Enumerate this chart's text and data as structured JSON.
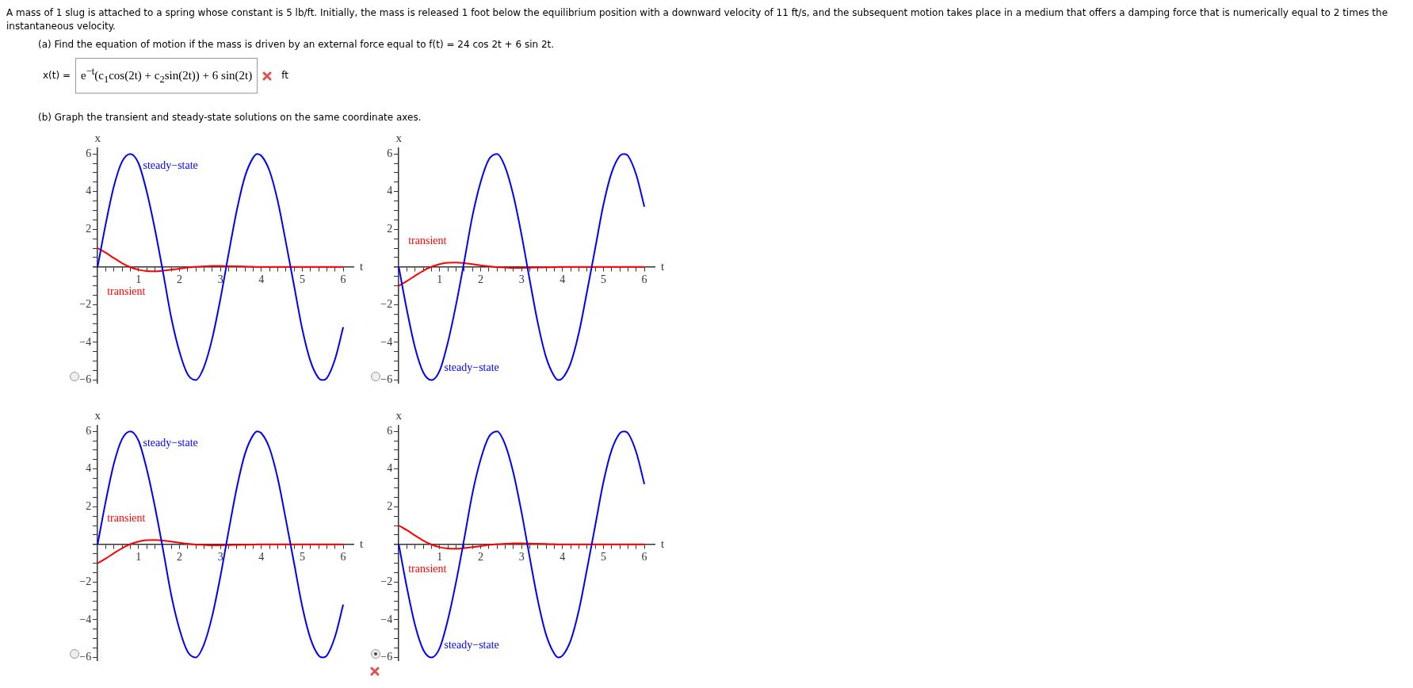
{
  "chart_data": [
    {
      "type": "other",
      "title": "A mass of 1 slug is attached to a spring whose constant is 5 lb/ft. Initially, the mass is released 1 foot below the equilibrium position with a downward velocity of 11 ft/s, and the subsequent motion takes place in a medium that offers a damping force that is numerically equal to 2 times the instantaneous velocity.",
      "annotations": [
        "(a) Find the equation of motion if the mass is driven by an external force equal to f(t) = 24 cos 2t + 6 sin 2t.",
        "x(t) =",
        "e$^{−t}$(c$_{1}$cos(2t) + c$_{2}$sin(2t)) + 6 sin(2t)",
        "ft",
        "(b) Graph the transient and steady-state solutions on the same coordinate axes."
      ]
    },
    {
      "type": "line",
      "xlabel": "t",
      "ylabel": "x",
      "xlim": [
        -0.1,
        6.25
      ],
      "ylim": [
        -6.15,
        6.3
      ],
      "grid": false,
      "legend": false,
      "marker": "none",
      "line_style": "solid",
      "xticks": [
        {
          "value": 0.2,
          "label": null
        },
        {
          "value": 0.4,
          "label": null
        },
        {
          "value": 0.6,
          "label": null
        },
        {
          "value": 0.8,
          "label": null
        },
        1,
        {
          "value": 1.2,
          "label": null
        },
        {
          "value": 1.4,
          "label": null
        },
        {
          "value": 1.6,
          "label": null
        },
        {
          "value": 1.8,
          "label": null
        },
        2,
        {
          "value": 2.2,
          "label": null
        },
        {
          "value": 2.4,
          "label": null
        },
        {
          "value": 2.6,
          "label": null
        },
        {
          "value": 2.8,
          "label": null
        },
        3,
        {
          "value": 3.2,
          "label": null
        },
        {
          "value": 3.4,
          "label": null
        },
        {
          "value": 3.6,
          "label": null
        },
        {
          "value": 3.8,
          "label": null
        },
        4,
        {
          "value": 4.2,
          "label": null
        },
        {
          "value": 4.4,
          "label": null
        },
        {
          "value": 4.6,
          "label": null
        },
        {
          "value": 4.8,
          "label": null
        },
        5,
        {
          "value": 5.2,
          "label": null
        },
        {
          "value": 5.4,
          "label": null
        },
        {
          "value": 5.6,
          "label": null
        },
        {
          "value": 5.8,
          "label": null
        },
        6
      ],
      "yticks": [
        -6,
        {
          "value": -5.5,
          "label": null
        },
        {
          "value": -5,
          "label": null
        },
        {
          "value": -4.5,
          "label": null
        },
        -4,
        {
          "value": -3.5,
          "label": null
        },
        {
          "value": -3,
          "label": null
        },
        {
          "value": -2.5,
          "label": null
        },
        -2,
        {
          "value": -1.5,
          "label": null
        },
        {
          "value": -1,
          "label": null
        },
        {
          "value": -0.5,
          "label": null
        },
        {
          "value": 0.5,
          "label": null
        },
        {
          "value": 1,
          "label": null
        },
        {
          "value": 1.5,
          "label": null
        },
        2,
        {
          "value": 2.5,
          "label": null
        },
        {
          "value": 3,
          "label": null
        },
        {
          "value": 3.5,
          "label": null
        },
        4,
        {
          "value": 4.5,
          "label": null
        },
        {
          "value": 5,
          "label": null
        },
        {
          "value": 5.5,
          "label": null
        },
        6
      ],
      "x": [
        0,
        0.2,
        0.4,
        0.6,
        0.8,
        1.0,
        1.2,
        1.4,
        1.6,
        1.8,
        2.0,
        2.2,
        2.4,
        2.6,
        2.8,
        3.0,
        3.2,
        3.4,
        3.6,
        3.8,
        3.9,
        4.0,
        4.2,
        4.4,
        4.6,
        4.8,
        5.0,
        5.2,
        5.4,
        5.5,
        5.6,
        5.8,
        6.0
      ],
      "series": [
        {
          "name": "steady−state",
          "color": "#0000ff",
          "values": [
            0,
            2.3,
            4.3,
            5.6,
            6.0,
            5.5,
            4.0,
            2.0,
            -0.3,
            -2.7,
            -4.5,
            -5.7,
            -6.0,
            -5.3,
            -3.8,
            -1.7,
            0.7,
            3.0,
            4.8,
            5.8,
            6.0,
            5.9,
            5.1,
            3.5,
            1.3,
            -1.0,
            -3.3,
            -5.0,
            -5.9,
            -6.0,
            -5.9,
            -4.9,
            -3.2
          ]
        },
        {
          "name": "transient",
          "color": "#ff0000",
          "values": [
            1,
            0.75,
            0.47,
            0.2,
            -0.01,
            -0.15,
            -0.22,
            -0.23,
            -0.2,
            -0.15,
            -0.09,
            -0.03,
            0.01,
            0.03,
            0.05,
            0.05,
            0.04,
            0.03,
            0.02,
            0.01,
            0,
            0,
            0,
            0,
            0,
            0,
            0,
            0,
            0,
            0,
            0,
            0,
            0
          ]
        }
      ]
    },
    {
      "type": "line",
      "xlabel": "t",
      "ylabel": "x",
      "xlim": [
        -0.1,
        6.25
      ],
      "ylim": [
        -6.15,
        6.3
      ],
      "grid": false,
      "legend": false,
      "marker": "none",
      "line_style": "solid",
      "xticks": [
        {
          "value": 0.2,
          "label": null
        },
        {
          "value": 0.4,
          "label": null
        },
        {
          "value": 0.6,
          "label": null
        },
        {
          "value": 0.8,
          "label": null
        },
        1,
        {
          "value": 1.2,
          "label": null
        },
        {
          "value": 1.4,
          "label": null
        },
        {
          "value": 1.6,
          "label": null
        },
        {
          "value": 1.8,
          "label": null
        },
        2,
        {
          "value": 2.2,
          "label": null
        },
        {
          "value": 2.4,
          "label": null
        },
        {
          "value": 2.6,
          "label": null
        },
        {
          "value": 2.8,
          "label": null
        },
        3,
        {
          "value": 3.2,
          "label": null
        },
        {
          "value": 3.4,
          "label": null
        },
        {
          "value": 3.6,
          "label": null
        },
        {
          "value": 3.8,
          "label": null
        },
        4,
        {
          "value": 4.2,
          "label": null
        },
        {
          "value": 4.4,
          "label": null
        },
        {
          "value": 4.6,
          "label": null
        },
        {
          "value": 4.8,
          "label": null
        },
        5,
        {
          "value": 5.2,
          "label": null
        },
        {
          "value": 5.4,
          "label": null
        },
        {
          "value": 5.6,
          "label": null
        },
        {
          "value": 5.8,
          "label": null
        },
        6
      ],
      "yticks": [
        -6,
        {
          "value": -5.5,
          "label": null
        },
        {
          "value": -5,
          "label": null
        },
        {
          "value": -4.5,
          "label": null
        },
        -4,
        {
          "value": -3.5,
          "label": null
        },
        {
          "value": -3,
          "label": null
        },
        {
          "value": -2.5,
          "label": null
        },
        -2,
        {
          "value": -1.5,
          "label": null
        },
        {
          "value": -1,
          "label": null
        },
        {
          "value": -0.5,
          "label": null
        },
        {
          "value": 0.5,
          "label": null
        },
        {
          "value": 1,
          "label": null
        },
        {
          "value": 1.5,
          "label": null
        },
        2,
        {
          "value": 2.5,
          "label": null
        },
        {
          "value": 3,
          "label": null
        },
        {
          "value": 3.5,
          "label": null
        },
        4,
        {
          "value": 4.5,
          "label": null
        },
        {
          "value": 5,
          "label": null
        },
        {
          "value": 5.5,
          "label": null
        },
        6
      ],
      "x": [
        0,
        0.2,
        0.4,
        0.6,
        0.8,
        1.0,
        1.2,
        1.4,
        1.6,
        1.8,
        2.0,
        2.2,
        2.4,
        2.6,
        2.8,
        3.0,
        3.2,
        3.4,
        3.6,
        3.8,
        3.9,
        4.0,
        4.2,
        4.4,
        4.6,
        4.8,
        5.0,
        5.2,
        5.4,
        5.5,
        5.6,
        5.8,
        6.0
      ],
      "series": [
        {
          "name": "steady−state",
          "color": "#0000ff",
          "values": [
            0,
            -2.3,
            -4.3,
            -5.6,
            -6.0,
            -5.5,
            -4.0,
            -2.0,
            0.3,
            2.7,
            4.5,
            5.7,
            6.0,
            5.3,
            3.8,
            1.7,
            -0.7,
            -3.0,
            -4.8,
            -5.8,
            -6.0,
            -5.9,
            -5.1,
            -3.5,
            -1.3,
            1.0,
            3.3,
            5.0,
            5.9,
            6.0,
            5.9,
            4.9,
            3.2
          ]
        },
        {
          "name": "transient",
          "color": "#ff0000",
          "values": [
            -1,
            -0.75,
            -0.47,
            -0.2,
            0.01,
            0.15,
            0.22,
            0.23,
            0.2,
            0.15,
            0.09,
            0.03,
            -0.01,
            -0.03,
            -0.05,
            -0.05,
            -0.04,
            -0.03,
            -0.02,
            -0.01,
            0,
            0,
            0,
            0,
            0,
            0,
            0,
            0,
            0,
            0,
            0,
            0,
            0
          ]
        }
      ]
    },
    {
      "type": "line",
      "xlabel": "t",
      "ylabel": "x",
      "xlim": [
        -0.1,
        6.25
      ],
      "ylim": [
        -6.15,
        6.3
      ],
      "grid": false,
      "legend": false,
      "marker": "none",
      "line_style": "solid",
      "xticks": [
        {
          "value": 0.2,
          "label": null
        },
        {
          "value": 0.4,
          "label": null
        },
        {
          "value": 0.6,
          "label": null
        },
        {
          "value": 0.8,
          "label": null
        },
        1,
        {
          "value": 1.2,
          "label": null
        },
        {
          "value": 1.4,
          "label": null
        },
        {
          "value": 1.6,
          "label": null
        },
        {
          "value": 1.8,
          "label": null
        },
        2,
        {
          "value": 2.2,
          "label": null
        },
        {
          "value": 2.4,
          "label": null
        },
        {
          "value": 2.6,
          "label": null
        },
        {
          "value": 2.8,
          "label": null
        },
        3,
        {
          "value": 3.2,
          "label": null
        },
        {
          "value": 3.4,
          "label": null
        },
        {
          "value": 3.6,
          "label": null
        },
        {
          "value": 3.8,
          "label": null
        },
        4,
        {
          "value": 4.2,
          "label": null
        },
        {
          "value": 4.4,
          "label": null
        },
        {
          "value": 4.6,
          "label": null
        },
        {
          "value": 4.8,
          "label": null
        },
        5,
        {
          "value": 5.2,
          "label": null
        },
        {
          "value": 5.4,
          "label": null
        },
        {
          "value": 5.6,
          "label": null
        },
        {
          "value": 5.8,
          "label": null
        },
        6
      ],
      "yticks": [
        -6,
        {
          "value": -5.5,
          "label": null
        },
        {
          "value": -5,
          "label": null
        },
        {
          "value": -4.5,
          "label": null
        },
        -4,
        {
          "value": -3.5,
          "label": null
        },
        {
          "value": -3,
          "label": null
        },
        {
          "value": -2.5,
          "label": null
        },
        -2,
        {
          "value": -1.5,
          "label": null
        },
        {
          "value": -1,
          "label": null
        },
        {
          "value": -0.5,
          "label": null
        },
        {
          "value": 0.5,
          "label": null
        },
        {
          "value": 1,
          "label": null
        },
        {
          "value": 1.5,
          "label": null
        },
        2,
        {
          "value": 2.5,
          "label": null
        },
        {
          "value": 3,
          "label": null
        },
        {
          "value": 3.5,
          "label": null
        },
        4,
        {
          "value": 4.5,
          "label": null
        },
        {
          "value": 5,
          "label": null
        },
        {
          "value": 5.5,
          "label": null
        },
        6
      ],
      "x": [
        0,
        0.2,
        0.4,
        0.6,
        0.8,
        1.0,
        1.2,
        1.4,
        1.6,
        1.8,
        2.0,
        2.2,
        2.4,
        2.6,
        2.8,
        3.0,
        3.2,
        3.4,
        3.6,
        3.8,
        3.9,
        4.0,
        4.2,
        4.4,
        4.6,
        4.8,
        5.0,
        5.2,
        5.4,
        5.5,
        5.6,
        5.8,
        6.0
      ],
      "series": [
        {
          "name": "steady−state",
          "color": "#0000ff",
          "values": [
            0,
            2.3,
            4.3,
            5.6,
            6.0,
            5.5,
            4.0,
            2.0,
            -0.3,
            -2.7,
            -4.5,
            -5.7,
            -6.0,
            -5.3,
            -3.8,
            -1.7,
            0.7,
            3.0,
            4.8,
            5.8,
            6.0,
            5.9,
            5.1,
            3.5,
            1.3,
            -1.0,
            -3.3,
            -5.0,
            -5.9,
            -6.0,
            -5.9,
            -4.9,
            -3.2
          ]
        },
        {
          "name": "transient",
          "color": "#ff0000",
          "values": [
            -1,
            -0.75,
            -0.47,
            -0.2,
            0.01,
            0.15,
            0.22,
            0.23,
            0.2,
            0.15,
            0.09,
            0.03,
            -0.01,
            -0.03,
            -0.05,
            -0.05,
            -0.04,
            -0.03,
            -0.02,
            -0.01,
            0,
            0,
            0,
            0,
            0,
            0,
            0,
            0,
            0,
            0,
            0,
            0,
            0
          ]
        }
      ]
    },
    {
      "type": "line",
      "xlabel": "t",
      "ylabel": "x",
      "xlim": [
        -0.1,
        6.25
      ],
      "ylim": [
        -6.15,
        6.3
      ],
      "grid": false,
      "legend": false,
      "marker": "none",
      "line_style": "solid",
      "xticks": [
        {
          "value": 0.2,
          "label": null
        },
        {
          "value": 0.4,
          "label": null
        },
        {
          "value": 0.6,
          "label": null
        },
        {
          "value": 0.8,
          "label": null
        },
        1,
        {
          "value": 1.2,
          "label": null
        },
        {
          "value": 1.4,
          "label": null
        },
        {
          "value": 1.6,
          "label": null
        },
        {
          "value": 1.8,
          "label": null
        },
        2,
        {
          "value": 2.2,
          "label": null
        },
        {
          "value": 2.4,
          "label": null
        },
        {
          "value": 2.6,
          "label": null
        },
        {
          "value": 2.8,
          "label": null
        },
        3,
        {
          "value": 3.2,
          "label": null
        },
        {
          "value": 3.4,
          "label": null
        },
        {
          "value": 3.6,
          "label": null
        },
        {
          "value": 3.8,
          "label": null
        },
        4,
        {
          "value": 4.2,
          "label": null
        },
        {
          "value": 4.4,
          "label": null
        },
        {
          "value": 4.6,
          "label": null
        },
        {
          "value": 4.8,
          "label": null
        },
        5,
        {
          "value": 5.2,
          "label": null
        },
        {
          "value": 5.4,
          "label": null
        },
        {
          "value": 5.6,
          "label": null
        },
        {
          "value": 5.8,
          "label": null
        },
        6
      ],
      "yticks": [
        -6,
        {
          "value": -5.5,
          "label": null
        },
        {
          "value": -5,
          "label": null
        },
        {
          "value": -4.5,
          "label": null
        },
        -4,
        {
          "value": -3.5,
          "label": null
        },
        {
          "value": -3,
          "label": null
        },
        {
          "value": -2.5,
          "label": null
        },
        -2,
        {
          "value": -1.5,
          "label": null
        },
        {
          "value": -1,
          "label": null
        },
        {
          "value": -0.5,
          "label": null
        },
        {
          "value": 0.5,
          "label": null
        },
        {
          "value": 1,
          "label": null
        },
        {
          "value": 1.5,
          "label": null
        },
        2,
        {
          "value": 2.5,
          "label": null
        },
        {
          "value": 3,
          "label": null
        },
        {
          "value": 3.5,
          "label": null
        },
        4,
        {
          "value": 4.5,
          "label": null
        },
        {
          "value": 5,
          "label": null
        },
        {
          "value": 5.5,
          "label": null
        },
        6
      ],
      "x": [
        0,
        0.2,
        0.4,
        0.6,
        0.8,
        1.0,
        1.2,
        1.4,
        1.6,
        1.8,
        2.0,
        2.2,
        2.4,
        2.6,
        2.8,
        3.0,
        3.2,
        3.4,
        3.6,
        3.8,
        3.9,
        4.0,
        4.2,
        4.4,
        4.6,
        4.8,
        5.0,
        5.2,
        5.4,
        5.5,
        5.6,
        5.8,
        6.0
      ],
      "series": [
        {
          "name": "steady−state",
          "color": "#0000ff",
          "values": [
            0,
            -2.3,
            -4.3,
            -5.6,
            -6.0,
            -5.5,
            -4.0,
            -2.0,
            0.3,
            2.7,
            4.5,
            5.7,
            6.0,
            5.3,
            3.8,
            1.7,
            -0.7,
            -3.0,
            -4.8,
            -5.8,
            -6.0,
            -5.9,
            -5.1,
            -3.5,
            -1.3,
            1.0,
            3.3,
            5.0,
            5.9,
            6.0,
            5.9,
            4.9,
            3.2
          ]
        },
        {
          "name": "transient",
          "color": "#ff0000",
          "values": [
            1,
            0.75,
            0.47,
            0.2,
            -0.01,
            -0.15,
            -0.22,
            -0.23,
            -0.2,
            -0.15,
            -0.09,
            -0.03,
            0.01,
            0.03,
            0.05,
            0.05,
            0.04,
            0.03,
            0.02,
            0.01,
            0,
            0,
            0,
            0,
            0,
            0,
            0,
            0,
            0,
            0,
            0,
            0,
            0
          ]
        }
      ]
    }
  ]
}
